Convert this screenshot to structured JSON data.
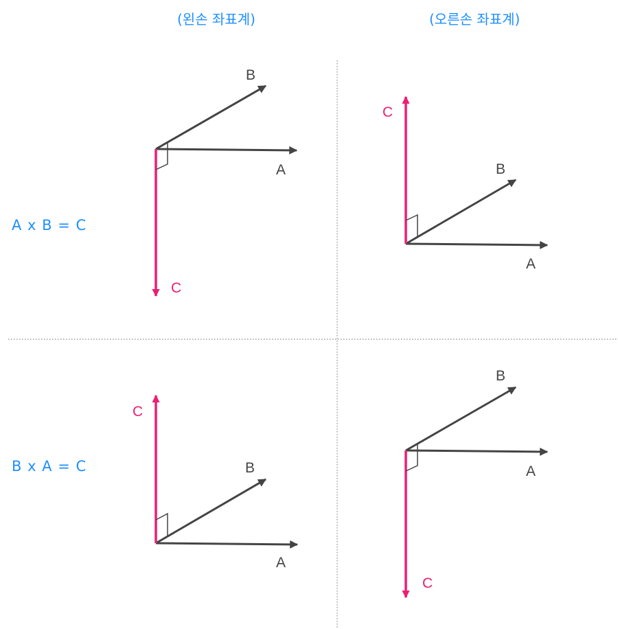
{
  "headers": {
    "left": "(왼손 좌표계)",
    "right": "(오른손 좌표계)"
  },
  "rows": {
    "top": "A x B = C",
    "bottom": "B x A = C"
  },
  "vectors": {
    "a": "A",
    "b": "B",
    "c": "C"
  },
  "colors": {
    "header": "#1e8fff",
    "vector": "#444444",
    "result": "#ec1e73",
    "divider": "#888888"
  }
}
